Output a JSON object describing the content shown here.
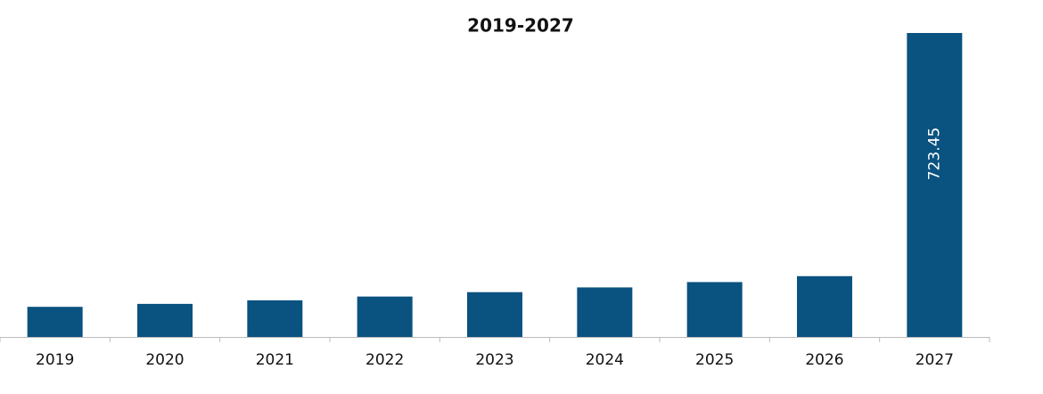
{
  "chart_data": {
    "type": "bar",
    "title": "2019-2027",
    "categories": [
      "2019",
      "2020",
      "2021",
      "2022",
      "2023",
      "2024",
      "2025",
      "2026",
      "2027"
    ],
    "values": [
      71.7,
      78.7,
      87.2,
      96.2,
      106.6,
      117.9,
      130.6,
      144.7,
      723.45
    ],
    "value_labels": [
      null,
      null,
      null,
      null,
      null,
      null,
      null,
      null,
      "723.45"
    ],
    "color": "#0a527f"
  }
}
